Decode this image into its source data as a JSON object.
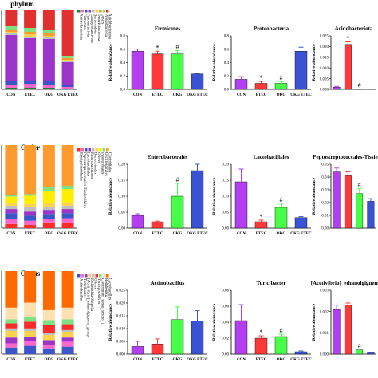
{
  "sections": [
    {
      "title": "phylum",
      "stack": {
        "categories": [
          "CON",
          "ETEC",
          "OKG",
          "OKG ETEC"
        ],
        "colors": [
          "#1f7a3a",
          "#ff66cc",
          "#3a56c8",
          "#9b35c9",
          "#bfbfbf",
          "#ffd24d",
          "#ff9a2e",
          "#80e080",
          "#e03030"
        ],
        "series": [
          [
            0.02,
            0.02,
            0.02,
            0.01
          ],
          [
            0.03,
            0.05,
            0.03,
            0.02
          ],
          [
            0.05,
            0.04,
            0.05,
            0.03
          ],
          [
            0.58,
            0.53,
            0.53,
            0.28
          ],
          [
            0.02,
            0.02,
            0.02,
            0.01
          ],
          [
            0.02,
            0.03,
            0.02,
            0.02
          ],
          [
            0.03,
            0.03,
            0.03,
            0.02
          ],
          [
            0.05,
            0.05,
            0.05,
            0.03
          ],
          [
            0.2,
            0.23,
            0.25,
            0.58
          ]
        ],
        "legend": [
          "Actinobacteriota",
          "Firmicutes",
          "Fusobacteriota",
          "Campylobacterota",
          "Bacteroidota",
          "Desulfobacterota",
          "Others",
          "Proteobacteria",
          "Acidobacteriota"
        ]
      },
      "bars": [
        {
          "title": "Firmicutes",
          "ylabel": "Relative abundance",
          "ylim": [
            0,
            0.8
          ],
          "ticks": [
            "0.0",
            "0.2",
            "0.4",
            "0.6",
            "0.8"
          ],
          "tickvals": [
            0,
            0.2,
            0.4,
            0.6,
            0.8
          ],
          "categories": [
            "CON",
            "ETEC",
            "OKG",
            "OKG ETEC"
          ],
          "values": [
            0.57,
            0.53,
            0.53,
            0.23
          ],
          "errors": [
            0.03,
            0.04,
            0.05,
            0.01
          ],
          "marks": [
            "",
            "*",
            "#",
            ""
          ]
        },
        {
          "title": "Proteobacteria",
          "ylabel": "Relative abundance",
          "ylim": [
            0,
            0.8
          ],
          "ticks": [
            "0.0",
            "0.2",
            "0.4",
            "0.6",
            "0.8"
          ],
          "tickvals": [
            0,
            0.2,
            0.4,
            0.6,
            0.8
          ],
          "categories": [
            "CON",
            "ETEC",
            "OKG",
            "OKG ETEC"
          ],
          "values": [
            0.15,
            0.09,
            0.09,
            0.57
          ],
          "errors": [
            0.04,
            0.03,
            0.03,
            0.06
          ],
          "marks": [
            "",
            "*",
            "#",
            ""
          ]
        },
        {
          "title": "Acidobacteriota",
          "ylabel": "Relative abundance",
          "ylim": [
            0,
            0.025
          ],
          "ticks": [
            "0.000",
            "0.005",
            "0.010",
            "0.015",
            "0.020",
            "0.025"
          ],
          "tickvals": [
            0,
            0.005,
            0.01,
            0.015,
            0.02,
            0.025
          ],
          "categories": [
            "CON",
            "ETEC",
            "OKG",
            "OKG ETEC"
          ],
          "values": [
            0.001,
            0.021,
            0.0001,
            0.0001
          ],
          "errors": [
            0.0004,
            0.0012,
            0,
            0
          ],
          "marks": [
            "",
            "*",
            "#",
            ""
          ]
        }
      ]
    },
    {
      "title": "Order",
      "stack": {
        "categories": [
          "CON",
          "ETEC",
          "OKG",
          "OKG ETEC"
        ],
        "colors": [
          "#ff2a2a",
          "#ff66cc",
          "#3a56c8",
          "#9b35c9",
          "#bfbfbf",
          "#ffd24d",
          "#ffee00",
          "#80e080",
          "#ff9a2e"
        ],
        "series": [
          [
            0.05,
            0.04,
            0.06,
            0.06
          ],
          [
            0.06,
            0.05,
            0.05,
            0.06
          ],
          [
            0.07,
            0.06,
            0.06,
            0.06
          ],
          [
            0.05,
            0.05,
            0.05,
            0.05
          ],
          [
            0.04,
            0.05,
            0.04,
            0.04
          ],
          [
            0.03,
            0.04,
            0.04,
            0.04
          ],
          [
            0.08,
            0.1,
            0.15,
            0.16
          ],
          [
            0.02,
            0.02,
            0.04,
            0.04
          ],
          [
            0.6,
            0.59,
            0.51,
            0.49
          ]
        ],
        "legend": [
          "Erysipelotrichales",
          "Peptostreptococcales-Tissierellales",
          "Lactobacillales",
          "Enterobacterales",
          "Bacteroidales",
          "Others",
          "Pasteurellales",
          "Oscillospirales",
          "Clostridiales"
        ]
      },
      "bars": [
        {
          "title": "Enterobacterales",
          "ylabel": "Relative abundance",
          "ylim": [
            0,
            0.2
          ],
          "ticks": [
            "0.00",
            "0.05",
            "0.10",
            "0.15",
            "0.20"
          ],
          "tickvals": [
            0,
            0.05,
            0.1,
            0.15,
            0.2
          ],
          "categories": [
            "CON",
            "ETEC",
            "OKG",
            "OKG ETEC"
          ],
          "values": [
            0.04,
            0.02,
            0.1,
            0.18
          ],
          "errors": [
            0.005,
            0.002,
            0.04,
            0.02
          ],
          "marks": [
            "",
            "",
            "#",
            ""
          ]
        },
        {
          "title": "Lactobacillales",
          "ylabel": "Relative abundance",
          "ylim": [
            0,
            0.2
          ],
          "ticks": [
            "0.00",
            "0.05",
            "0.10",
            "0.15",
            "0.20"
          ],
          "tickvals": [
            0,
            0.05,
            0.1,
            0.15,
            0.2
          ],
          "categories": [
            "CON",
            "ETEC",
            "OKG",
            "OKG ETEC"
          ],
          "values": [
            0.145,
            0.02,
            0.065,
            0.033
          ],
          "errors": [
            0.04,
            0.005,
            0.013,
            0.003
          ],
          "marks": [
            "",
            "*",
            "#",
            ""
          ]
        },
        {
          "title": "Peptostreptococcales-Tissierellales",
          "ylabel": "Relative abundance",
          "ylim": [
            0,
            0.05
          ],
          "ticks": [
            "0.00",
            "0.01",
            "0.02",
            "0.03",
            "0.04",
            "0.05"
          ],
          "tickvals": [
            0,
            0.01,
            0.02,
            0.03,
            0.04,
            0.05
          ],
          "categories": [
            "CON",
            "ETEC",
            "OKG",
            "OKG ETEC"
          ],
          "values": [
            0.044,
            0.041,
            0.027,
            0.021
          ],
          "errors": [
            0.003,
            0.003,
            0.004,
            0.002
          ],
          "marks": [
            "",
            "",
            "#",
            ""
          ]
        }
      ]
    },
    {
      "title": "Genus",
      "stack": {
        "categories": [
          "CON",
          "ETEC",
          "OKG",
          "OKG ETEC"
        ],
        "colors": [
          "#3a56c8",
          "#ff66cc",
          "#9b35c9",
          "#ffd24d",
          "#bfbfbf",
          "#ff2a2a",
          "#80e080",
          "#ffe0b0",
          "#ff6a00"
        ],
        "series": [
          [
            0.08,
            0.1,
            0.06,
            0.09
          ],
          [
            0.05,
            0.06,
            0.05,
            0.06
          ],
          [
            0.07,
            0.05,
            0.06,
            0.05
          ],
          [
            0.08,
            0.07,
            0.06,
            0.07
          ],
          [
            0.03,
            0.03,
            0.02,
            0.02
          ],
          [
            0.06,
            0.08,
            0.1,
            0.07
          ],
          [
            0.05,
            0.06,
            0.06,
            0.06
          ],
          [
            0.14,
            0.17,
            0.12,
            0.14
          ],
          [
            0.44,
            0.38,
            0.47,
            0.44
          ]
        ],
        "legend": [
          "Actinobacillus",
          "Turicibacter",
          "[Acetivibrio]_ethanolgignens_group",
          "Escherichia-Shigella",
          "Others",
          "Terrisporobacter",
          "Clostridium_sensu_stricto_1",
          "Romboutsia",
          "Lactobacillus"
        ]
      },
      "bars": [
        {
          "title": "Actinobacillus",
          "ylabel": "Relative abundance",
          "ylim": [
            0,
            0.025
          ],
          "ticks": [
            "0.000",
            "0.005",
            "0.010",
            "0.015",
            "0.020",
            "0.025"
          ],
          "tickvals": [
            0,
            0.005,
            0.01,
            0.015,
            0.02,
            0.025
          ],
          "categories": [
            "CON",
            "ETEC",
            "OKG",
            "OKG ETEC"
          ],
          "values": [
            0.003,
            0.004,
            0.0135,
            0.013
          ],
          "errors": [
            0.002,
            0.002,
            0.005,
            0.004
          ],
          "marks": [
            "",
            "",
            "",
            ""
          ]
        },
        {
          "title": "Turicibacter",
          "ylabel": "Relative abundance",
          "ylim": [
            0,
            0.08
          ],
          "ticks": [
            "0.00",
            "0.02",
            "0.04",
            "0.06",
            "0.08"
          ],
          "tickvals": [
            0,
            0.02,
            0.04,
            0.06,
            0.08
          ],
          "categories": [
            "CON",
            "ETEC",
            "OKG",
            "OKG ETEC"
          ],
          "values": [
            0.042,
            0.02,
            0.022,
            0.003
          ],
          "errors": [
            0.02,
            0.003,
            0.003,
            0.001
          ],
          "marks": [
            "",
            "*",
            "#",
            ""
          ]
        },
        {
          "title": "[Acetivibrio]_ethanolgignens_group",
          "ylabel": "Relative abundance",
          "ylim": [
            0,
            0.003
          ],
          "ticks": [
            "0.000",
            "0.001",
            "0.002",
            "0.003"
          ],
          "tickvals": [
            0,
            0.001,
            0.002,
            0.003
          ],
          "categories": [
            "CON",
            "ETEC",
            "OKG",
            "OKG ETEC"
          ],
          "values": [
            0.0021,
            0.0023,
            0.0002,
            0.0001
          ],
          "errors": [
            0.0002,
            0.0001,
            0,
            0
          ],
          "marks": [
            "",
            "",
            "#",
            ""
          ]
        }
      ]
    }
  ],
  "chart_data": [
    {
      "type": "bar",
      "title": "Firmicutes",
      "categories": [
        "CON",
        "ETEC",
        "OKG",
        "OKG ETEC"
      ],
      "values": [
        0.57,
        0.53,
        0.53,
        0.23
      ],
      "ylabel": "Relative abundance",
      "ylim": [
        0,
        0.8
      ]
    },
    {
      "type": "bar",
      "title": "Proteobacteria",
      "categories": [
        "CON",
        "ETEC",
        "OKG",
        "OKG ETEC"
      ],
      "values": [
        0.15,
        0.09,
        0.09,
        0.57
      ],
      "ylabel": "Relative abundance",
      "ylim": [
        0,
        0.8
      ]
    },
    {
      "type": "bar",
      "title": "Acidobacteriota",
      "categories": [
        "CON",
        "ETEC",
        "OKG",
        "OKG ETEC"
      ],
      "values": [
        0.001,
        0.021,
        0.0001,
        0.0001
      ],
      "ylabel": "Relative abundance",
      "ylim": [
        0,
        0.025
      ]
    },
    {
      "type": "bar",
      "title": "Enterobacterales",
      "categories": [
        "CON",
        "ETEC",
        "OKG",
        "OKG ETEC"
      ],
      "values": [
        0.04,
        0.02,
        0.1,
        0.18
      ],
      "ylabel": "Relative abundance",
      "ylim": [
        0,
        0.2
      ]
    },
    {
      "type": "bar",
      "title": "Lactobacillales",
      "categories": [
        "CON",
        "ETEC",
        "OKG",
        "OKG ETEC"
      ],
      "values": [
        0.145,
        0.02,
        0.065,
        0.033
      ],
      "ylabel": "Relative abundance",
      "ylim": [
        0,
        0.2
      ]
    },
    {
      "type": "bar",
      "title": "Peptostreptococcales-Tissierellales",
      "categories": [
        "CON",
        "ETEC",
        "OKG",
        "OKG ETEC"
      ],
      "values": [
        0.044,
        0.041,
        0.027,
        0.021
      ],
      "ylabel": "Relative abundance",
      "ylim": [
        0,
        0.05
      ]
    },
    {
      "type": "bar",
      "title": "Actinobacillus",
      "categories": [
        "CON",
        "ETEC",
        "OKG",
        "OKG ETEC"
      ],
      "values": [
        0.003,
        0.004,
        0.0135,
        0.013
      ],
      "ylabel": "Relative abundance",
      "ylim": [
        0,
        0.025
      ]
    },
    {
      "type": "bar",
      "title": "Turicibacter",
      "categories": [
        "CON",
        "ETEC",
        "OKG",
        "OKG ETEC"
      ],
      "values": [
        0.042,
        0.02,
        0.022,
        0.003
      ],
      "ylabel": "Relative abundance",
      "ylim": [
        0,
        0.08
      ]
    },
    {
      "type": "bar",
      "title": "[Acetivibrio]_ethanolgignens_group",
      "categories": [
        "CON",
        "ETEC",
        "OKG",
        "OKG ETEC"
      ],
      "values": [
        0.0021,
        0.0023,
        0.0002,
        0.0001
      ],
      "ylabel": "Relative abundance",
      "ylim": [
        0,
        0.003
      ]
    }
  ],
  "bar_colors": [
    "#b23ff0",
    "#ff3838",
    "#48ff48",
    "#3a52d4"
  ]
}
